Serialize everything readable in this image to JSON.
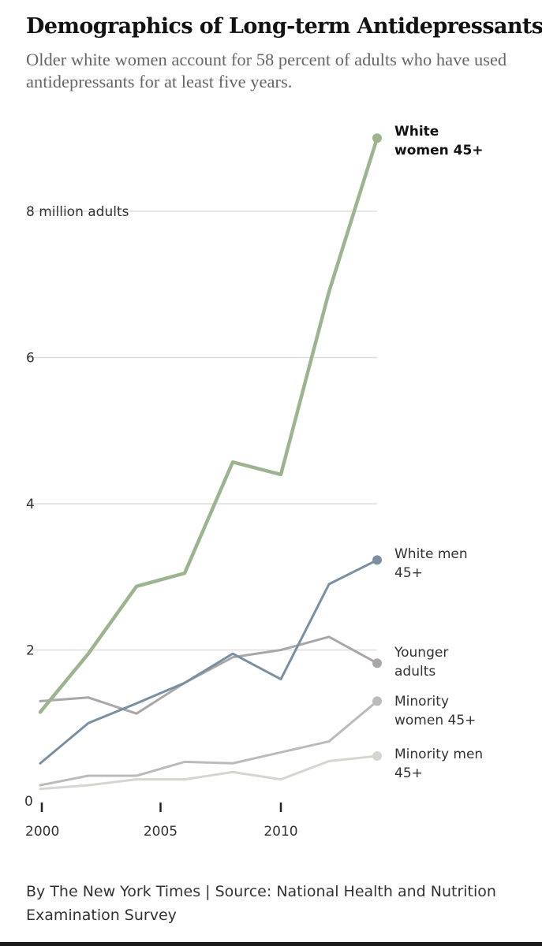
{
  "header": {
    "title": "Demographics of Long-term Antidepressants",
    "subtitle": "Older white women account for 58 percent of adults who have used antidepressants for at least five years."
  },
  "footer": {
    "credit": "By The New York Times | Source: National Health and Nutrition Examination Survey"
  },
  "chart_data": {
    "type": "line",
    "title": "Demographics of Long-term Antidepressants",
    "xlabel": "",
    "ylabel": "",
    "xlim": [
      2000,
      2014
    ],
    "ylim": [
      0,
      9
    ],
    "x_ticks": [
      2000,
      2005,
      2010
    ],
    "x_tick_labels": [
      "2000",
      "2005",
      "2010"
    ],
    "y_ticks": [
      0,
      2,
      4,
      6,
      8
    ],
    "y_tick_labels": [
      "0",
      "2",
      "4",
      "6",
      "8  million adults"
    ],
    "grid": true,
    "legend": "direct labels at line ends, right",
    "x": [
      2000,
      2002,
      2004,
      2006,
      2008,
      2010,
      2012,
      2014
    ],
    "series": [
      {
        "name": "White women 45+",
        "color": "#9cb48f",
        "width": 4.5,
        "bold": true,
        "values": [
          1.15,
          1.95,
          2.87,
          3.05,
          4.57,
          4.4,
          6.9,
          9.0
        ]
      },
      {
        "name": "White men 45+",
        "color": "#7a8fa0",
        "width": 3,
        "bold": false,
        "values": [
          0.45,
          1.0,
          1.27,
          1.55,
          1.95,
          1.6,
          2.9,
          3.23
        ]
      },
      {
        "name": "Younger adults",
        "color": "#aba6aa",
        "width": 3,
        "bold": false,
        "values": [
          1.3,
          1.35,
          1.13,
          1.55,
          1.9,
          2.0,
          2.18,
          1.82
        ]
      },
      {
        "name": "Minority women 45+",
        "color": "#bbbbbb",
        "width": 3,
        "bold": false,
        "values": [
          0.15,
          0.28,
          0.28,
          0.47,
          0.45,
          0.6,
          0.75,
          1.3
        ]
      },
      {
        "name": "Minority men 45+",
        "color": "#d6d5d0",
        "width": 3,
        "bold": false,
        "values": [
          0.1,
          0.15,
          0.23,
          0.23,
          0.33,
          0.23,
          0.48,
          0.55
        ]
      }
    ],
    "end_labels": [
      {
        "series": "White women 45+",
        "lines": [
          "White",
          "women 45+"
        ]
      },
      {
        "series": "White men 45+",
        "lines": [
          "White men",
          "45+"
        ]
      },
      {
        "series": "Younger adults",
        "lines": [
          "Younger",
          "adults"
        ]
      },
      {
        "series": "Minority women 45+",
        "lines": [
          "Minority",
          "women 45+"
        ]
      },
      {
        "series": "Minority men 45+",
        "lines": [
          "Minority men",
          "45+"
        ]
      }
    ]
  }
}
